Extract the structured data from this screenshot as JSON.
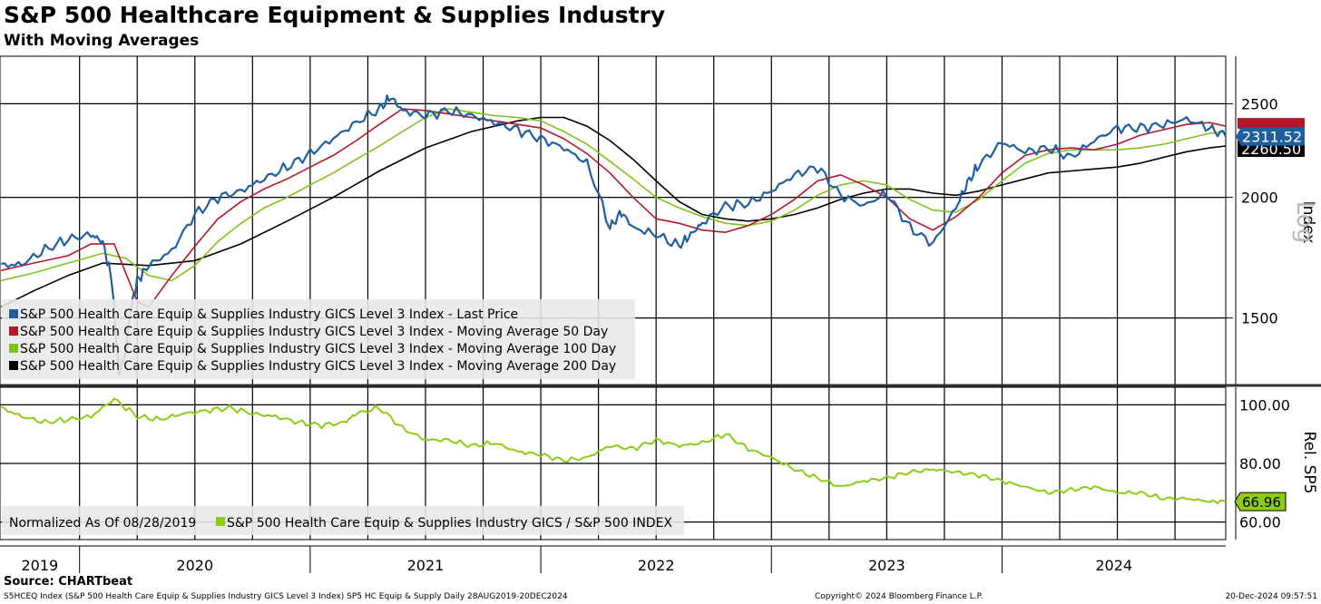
{
  "title": "S&P 500 Healthcare Equipment & Supplies Industry",
  "subtitle": "With Moving Averages",
  "source": "Source: CHARTbeat",
  "footer": {
    "description": "S5HCEQ Index (S&P 500 Health Care Equip & Supplies Industry GICS Level 3 Index) SP5 HC Equip & Supply  Daily 28AUG2019-20DEC2024",
    "copyright": "Copyright© 2024 Bloomberg Finance L.P.",
    "timestamp": "20-Dec-2024 09:57:51"
  },
  "colors": {
    "last_price": "#1f5fa0",
    "ma50": "#b5172a",
    "ma100": "#7fc31c",
    "ma200": "#000000",
    "relative": "#8ccc16",
    "grid": "#000000"
  },
  "chart_data": [
    {
      "type": "line",
      "title": "S&P 500 Healthcare Equipment & Supplies Industry",
      "ylabel": "Index",
      "scale_label": "Log",
      "yscale": "log",
      "ylim": [
        1280,
        2800
      ],
      "yticks": [
        1500,
        2000,
        2500
      ],
      "xlim": [
        2019.655,
        2024.97
      ],
      "x_categories": [
        "2019",
        "2020",
        "2021",
        "2022",
        "2023",
        "2024"
      ],
      "last_values": {
        "last_price": "2311.52",
        "ma200": "2260.50"
      },
      "series": [
        {
          "name": "S&P 500 Health Care Equip & Supplies Industry GICS Level 3 Index - Last Price",
          "key": "last_price",
          "x": [
            2019.66,
            2019.75,
            2019.85,
            2019.95,
            2020.05,
            2020.1,
            2020.14,
            2020.17,
            2020.2,
            2020.22,
            2020.25,
            2020.3,
            2020.4,
            2020.5,
            2020.6,
            2020.7,
            2020.8,
            2020.9,
            2021.0,
            2021.1,
            2021.2,
            2021.3,
            2021.35,
            2021.4,
            2021.5,
            2021.6,
            2021.7,
            2021.8,
            2021.9,
            2022.0,
            2022.1,
            2022.2,
            2022.3,
            2022.35,
            2022.4,
            2022.5,
            2022.6,
            2022.65,
            2022.7,
            2022.8,
            2022.9,
            2023.0,
            2023.1,
            2023.2,
            2023.3,
            2023.4,
            2023.5,
            2023.6,
            2023.7,
            2023.8,
            2023.85,
            2023.9,
            2024.0,
            2024.1,
            2024.2,
            2024.3,
            2024.4,
            2024.5,
            2024.6,
            2024.7,
            2024.8,
            2024.9,
            2024.97
          ],
          "values": [
            1700,
            1705,
            1765,
            1810,
            1830,
            1800,
            1640,
            1310,
            1380,
            1520,
            1640,
            1700,
            1760,
            1920,
            2000,
            2030,
            2090,
            2150,
            2220,
            2300,
            2390,
            2470,
            2540,
            2460,
            2430,
            2460,
            2430,
            2390,
            2350,
            2300,
            2250,
            2170,
            1860,
            1930,
            1860,
            1830,
            1780,
            1830,
            1880,
            1960,
            1970,
            2030,
            2110,
            2150,
            2010,
            1960,
            2020,
            1860,
            1790,
            1950,
            2070,
            2160,
            2280,
            2230,
            2250,
            2200,
            2290,
            2360,
            2360,
            2380,
            2410,
            2360,
            2311.52
          ]
        },
        {
          "name": "S&P 500 Health Care Equip & Supplies Industry GICS Level 3 Index - Moving Average 50 Day",
          "key": "ma50",
          "x": [
            2019.66,
            2019.8,
            2019.95,
            2020.05,
            2020.15,
            2020.25,
            2020.3,
            2020.4,
            2020.5,
            2020.6,
            2020.7,
            2020.8,
            2020.9,
            2021.0,
            2021.1,
            2021.2,
            2021.3,
            2021.4,
            2021.5,
            2021.6,
            2021.7,
            2021.8,
            2021.9,
            2022.0,
            2022.1,
            2022.2,
            2022.3,
            2022.4,
            2022.5,
            2022.6,
            2022.7,
            2022.8,
            2022.9,
            2023.0,
            2023.1,
            2023.2,
            2023.3,
            2023.4,
            2023.5,
            2023.6,
            2023.7,
            2023.8,
            2023.9,
            2024.0,
            2024.1,
            2024.2,
            2024.3,
            2024.4,
            2024.5,
            2024.6,
            2024.7,
            2024.8,
            2024.9,
            2024.97
          ],
          "values": [
            1680,
            1710,
            1740,
            1790,
            1790,
            1560,
            1540,
            1660,
            1780,
            1900,
            1980,
            2040,
            2090,
            2150,
            2210,
            2290,
            2380,
            2470,
            2460,
            2440,
            2420,
            2400,
            2380,
            2360,
            2300,
            2220,
            2120,
            2000,
            1900,
            1880,
            1850,
            1840,
            1870,
            1920,
            1990,
            2080,
            2110,
            2060,
            2000,
            1900,
            1850,
            1910,
            2000,
            2120,
            2210,
            2240,
            2250,
            2240,
            2270,
            2320,
            2350,
            2380,
            2390,
            2370
          ]
        },
        {
          "name": "S&P 500 Health Care Equip & Supplies Industry GICS Level 3 Index - Moving Average 100 Day",
          "key": "ma100",
          "x": [
            2019.66,
            2019.8,
            2019.95,
            2020.1,
            2020.2,
            2020.3,
            2020.4,
            2020.5,
            2020.6,
            2020.7,
            2020.8,
            2020.9,
            2021.0,
            2021.1,
            2021.2,
            2021.3,
            2021.4,
            2021.5,
            2021.6,
            2021.7,
            2021.8,
            2021.9,
            2022.0,
            2022.1,
            2022.2,
            2022.3,
            2022.4,
            2022.5,
            2022.6,
            2022.7,
            2022.8,
            2022.9,
            2023.0,
            2023.1,
            2023.2,
            2023.3,
            2023.4,
            2023.5,
            2023.6,
            2023.7,
            2023.8,
            2023.9,
            2024.0,
            2024.1,
            2024.2,
            2024.3,
            2024.4,
            2024.5,
            2024.6,
            2024.7,
            2024.8,
            2024.9,
            2024.97
          ],
          "values": [
            1640,
            1670,
            1710,
            1750,
            1730,
            1660,
            1640,
            1700,
            1800,
            1880,
            1950,
            2000,
            2060,
            2120,
            2190,
            2260,
            2340,
            2420,
            2470,
            2450,
            2430,
            2420,
            2400,
            2340,
            2270,
            2180,
            2090,
            2000,
            1950,
            1910,
            1880,
            1870,
            1890,
            1940,
            2010,
            2060,
            2080,
            2060,
            1990,
            1940,
            1930,
            1990,
            2080,
            2170,
            2220,
            2240,
            2240,
            2240,
            2250,
            2270,
            2300,
            2330,
            2340
          ]
        },
        {
          "name": "S&P 500 Health Care Equip & Supplies Industry GICS Level 3 Index - Moving Average 200 Day",
          "key": "ma200",
          "x": [
            2019.66,
            2019.8,
            2019.95,
            2020.1,
            2020.3,
            2020.5,
            2020.7,
            2020.9,
            2021.1,
            2021.3,
            2021.5,
            2021.7,
            2021.9,
            2022.0,
            2022.1,
            2022.2,
            2022.3,
            2022.4,
            2022.5,
            2022.6,
            2022.7,
            2022.8,
            2022.9,
            2023.0,
            2023.1,
            2023.2,
            2023.3,
            2023.4,
            2023.5,
            2023.6,
            2023.7,
            2023.8,
            2023.9,
            2024.0,
            2024.1,
            2024.2,
            2024.3,
            2024.4,
            2024.5,
            2024.6,
            2024.7,
            2024.8,
            2024.9,
            2024.97
          ],
          "values": [
            1540,
            1600,
            1660,
            1710,
            1700,
            1720,
            1790,
            1890,
            2000,
            2130,
            2250,
            2340,
            2400,
            2420,
            2420,
            2370,
            2290,
            2190,
            2080,
            1980,
            1920,
            1900,
            1890,
            1900,
            1920,
            1950,
            1990,
            2020,
            2040,
            2040,
            2020,
            2010,
            2030,
            2060,
            2090,
            2120,
            2130,
            2140,
            2150,
            2170,
            2200,
            2230,
            2250,
            2260.5
          ]
        }
      ]
    },
    {
      "type": "line",
      "ylabel": "Rel. SP5",
      "ylim": [
        54,
        106
      ],
      "yticks": [
        60,
        80,
        100
      ],
      "ytick_labels": [
        "60.00",
        "80.00",
        "100.00"
      ],
      "last_value": "66.96",
      "normalized_note": "Normalized As Of 08/28/2019",
      "xlim": [
        2019.655,
        2024.97
      ],
      "series": [
        {
          "name": "S&P 500 Health Care Equip & Supplies Industry GICS / S&P 500 INDEX",
          "key": "relative",
          "x": [
            2019.66,
            2019.75,
            2019.85,
            2019.95,
            2020.05,
            2020.15,
            2020.25,
            2020.35,
            2020.45,
            2020.55,
            2020.65,
            2020.75,
            2020.85,
            2020.95,
            2021.05,
            2021.15,
            2021.2,
            2021.3,
            2021.4,
            2021.5,
            2021.6,
            2021.7,
            2021.8,
            2021.9,
            2022.0,
            2022.1,
            2022.2,
            2022.3,
            2022.4,
            2022.5,
            2022.6,
            2022.7,
            2022.8,
            2022.9,
            2023.0,
            2023.1,
            2023.2,
            2023.3,
            2023.4,
            2023.5,
            2023.6,
            2023.7,
            2023.8,
            2023.9,
            2024.0,
            2024.1,
            2024.2,
            2024.3,
            2024.4,
            2024.5,
            2024.6,
            2024.7,
            2024.8,
            2024.9,
            2024.97
          ],
          "values": [
            99,
            96,
            94,
            95,
            96,
            102,
            96,
            95,
            97,
            98,
            99,
            97,
            96,
            94,
            93,
            94,
            97,
            99,
            92,
            88,
            88,
            86,
            87,
            84,
            83,
            81,
            82,
            86,
            85,
            88,
            86,
            87,
            90,
            85,
            82,
            78,
            75,
            72,
            74,
            75,
            77,
            78,
            77,
            76,
            74,
            72,
            70,
            71,
            72,
            70,
            70,
            68,
            68,
            67,
            66.96
          ]
        }
      ]
    }
  ]
}
